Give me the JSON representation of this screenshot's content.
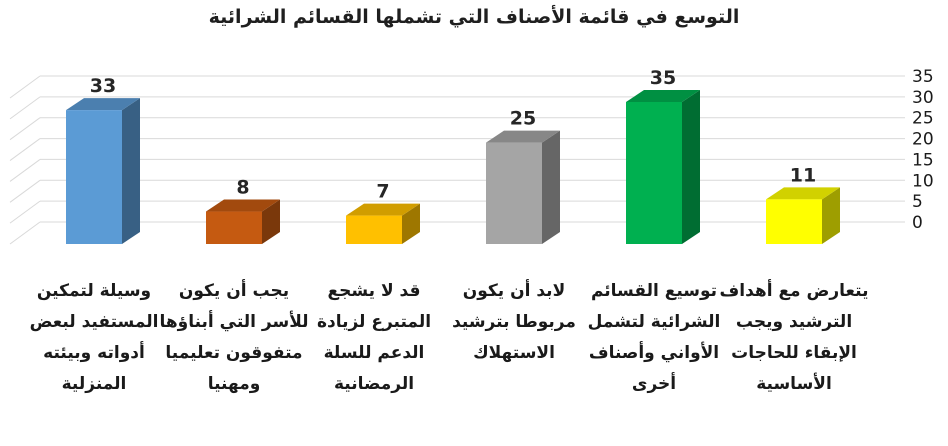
{
  "chart_data": {
    "type": "bar",
    "title": "التوسع في قائمة الأصناف التي تشملها القسائم الشرائية",
    "xlabel": "",
    "ylabel": "",
    "ylim": [
      0,
      35
    ],
    "yticks": [
      0,
      5,
      10,
      15,
      20,
      25,
      30,
      35
    ],
    "grid": true,
    "legend": "none",
    "categories": [
      "وسيلة لتمكين المستفيد لبعض أدواته وبيئته المنزلية",
      "يجب أن يكون للأسر التي أبناؤها متفوقون تعليميا ومهنيا",
      "قد لا يشجع المتبرع لزيادة الدعم للسلة الرمضانية",
      "لابد أن يكون مربوطا بترشيد الاستهلاك",
      "توسيع القسائم الشرائية لتشمل الأواني وأصناف أخرى",
      "يتعارض مع أهداف الترشيد ويجب الإبقاء للحاجات الأساسية"
    ],
    "values": [
      33,
      8,
      7,
      25,
      35,
      11
    ],
    "data_labels": [
      "33",
      "8",
      "7",
      "25",
      "35",
      "11"
    ],
    "colors": [
      "#5B9BD5",
      "#C55A11",
      "#FFC000",
      "#A5A5A5",
      "#00B050",
      "#FFFF00"
    ]
  }
}
